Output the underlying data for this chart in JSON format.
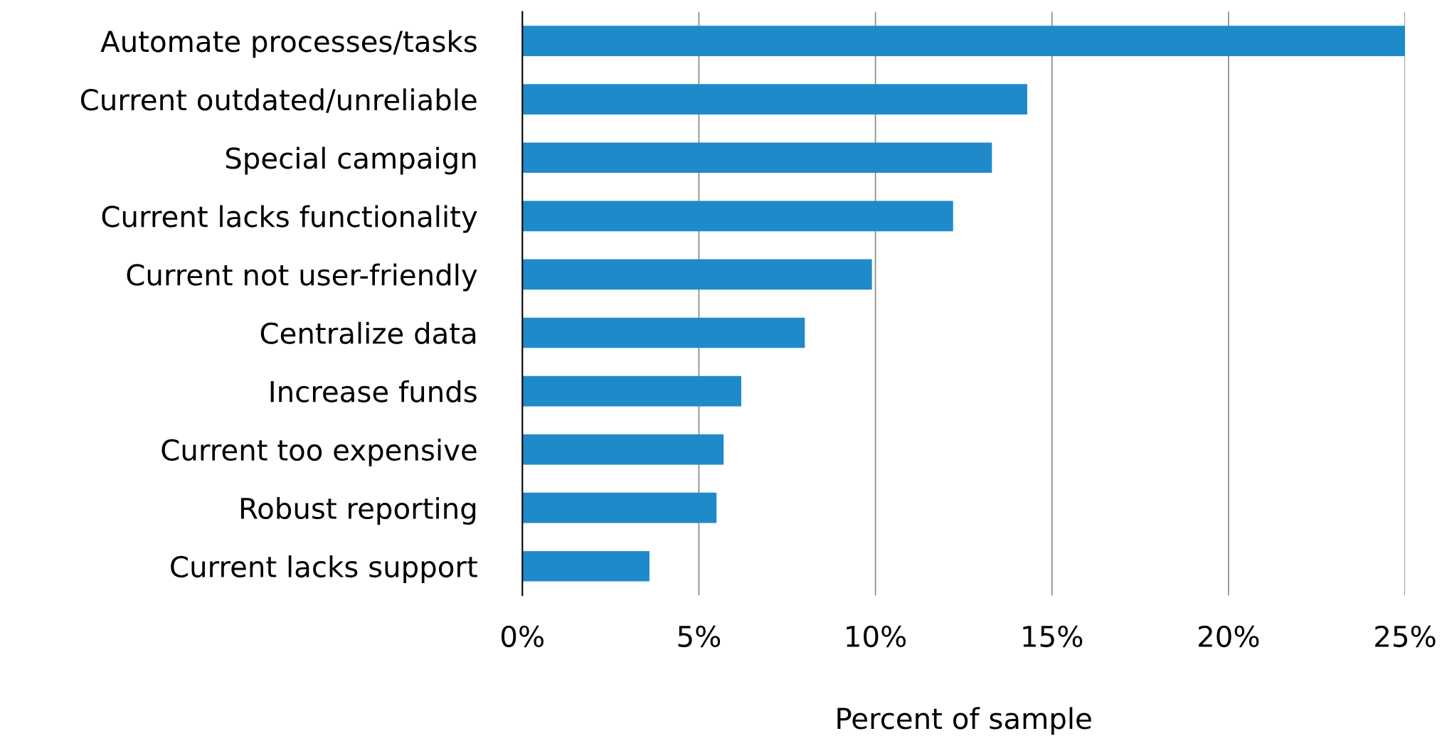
{
  "chart_data": {
    "type": "bar",
    "orientation": "horizontal",
    "categories": [
      "Automate processes/tasks",
      "Current outdated/unreliable",
      "Special campaign",
      "Current lacks functionality",
      "Current not user-friendly",
      "Centralize data",
      "Increase funds",
      "Current too expensive",
      "Robust reporting",
      "Current lacks support"
    ],
    "values": [
      25.0,
      14.3,
      13.3,
      12.2,
      9.9,
      8.0,
      6.2,
      5.7,
      5.5,
      3.6
    ],
    "color": "#1f8ac9",
    "xlabel": "Percent of sample",
    "xlim": [
      0,
      25
    ],
    "xticks": [
      {
        "value": 0,
        "label": "0%"
      },
      {
        "value": 5,
        "label": "5%"
      },
      {
        "value": 10,
        "label": "10%"
      },
      {
        "value": 15,
        "label": "15%"
      },
      {
        "value": 20,
        "label": "20%"
      },
      {
        "value": 25,
        "label": "25%"
      }
    ],
    "grid": "x",
    "legend": false
  }
}
